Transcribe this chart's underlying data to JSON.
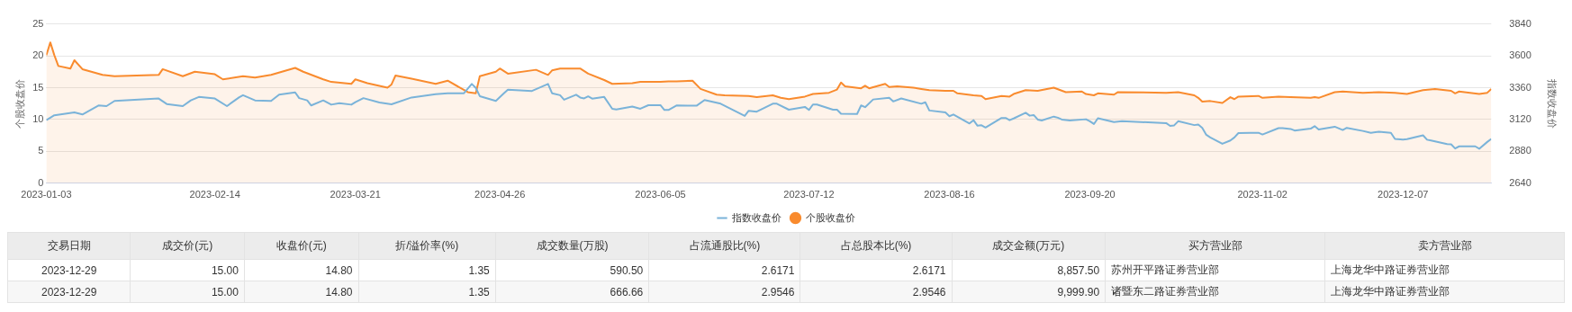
{
  "chart_data": [
    {
      "type": "line",
      "ylabel": "个股收盘价",
      "y2label": "指数收盘价",
      "xlim": [
        "2023-01-03",
        "2023-12-29"
      ],
      "xticks": [
        "2023-01-03",
        "2023-02-14",
        "2023-03-21",
        "2023-04-26",
        "2023-06-05",
        "2023-07-12",
        "2023-08-16",
        "2023-09-20",
        "2023-11-02",
        "2023-12-07"
      ],
      "ylim": [
        0,
        25
      ],
      "yticks": [
        0,
        5,
        10,
        15,
        20,
        25
      ],
      "y2lim": [
        2640,
        3840
      ],
      "y2ticks": [
        2640,
        2880,
        3120,
        3360,
        3600,
        3840
      ],
      "grid": "y",
      "legend": "bottom",
      "marker": "none",
      "series": [
        {
          "name": "指数收盘价",
          "type": "line",
          "axis": "y2",
          "color": "#7ab3d9",
          "x": [
            "2023-01-03",
            "2023-01-05",
            "2023-01-10",
            "2023-01-12",
            "2023-01-16",
            "2023-01-18",
            "2023-01-20",
            "2023-01-31",
            "2023-02-02",
            "2023-02-06",
            "2023-02-08",
            "2023-02-10",
            "2023-02-14",
            "2023-02-17",
            "2023-02-20",
            "2023-02-21",
            "2023-02-24",
            "2023-02-28",
            "2023-03-02",
            "2023-03-06",
            "2023-03-07",
            "2023-03-09",
            "2023-03-10",
            "2023-03-13",
            "2023-03-15",
            "2023-03-17",
            "2023-03-20",
            "2023-03-21",
            "2023-03-23",
            "2023-03-27",
            "2023-03-30",
            "2023-04-04",
            "2023-04-10",
            "2023-04-13",
            "2023-04-17",
            "2023-04-19",
            "2023-04-20",
            "2023-04-21",
            "2023-04-25",
            "2023-04-27",
            "2023-04-28",
            "2023-05-04",
            "2023-05-08",
            "2023-05-09",
            "2023-05-11",
            "2023-05-12",
            "2023-05-15",
            "2023-05-16",
            "2023-05-17",
            "2023-05-18",
            "2023-05-19",
            "2023-05-22",
            "2023-05-24",
            "2023-05-25",
            "2023-05-29",
            "2023-05-31",
            "2023-06-02",
            "2023-06-05",
            "2023-06-06",
            "2023-06-07",
            "2023-06-09",
            "2023-06-14",
            "2023-06-16",
            "2023-06-20",
            "2023-06-26",
            "2023-06-27",
            "2023-06-29",
            "2023-07-03",
            "2023-07-04",
            "2023-07-07",
            "2023-07-11",
            "2023-07-12",
            "2023-07-13",
            "2023-07-14",
            "2023-07-18",
            "2023-07-19",
            "2023-07-20",
            "2023-07-24",
            "2023-07-25",
            "2023-07-26",
            "2023-07-28",
            "2023-08-01",
            "2023-08-02",
            "2023-08-04",
            "2023-08-09",
            "2023-08-10",
            "2023-08-11",
            "2023-08-15",
            "2023-08-16",
            "2023-08-17",
            "2023-08-21",
            "2023-08-22",
            "2023-08-23",
            "2023-08-24",
            "2023-08-25",
            "2023-08-29",
            "2023-08-30",
            "2023-08-31",
            "2023-09-01",
            "2023-09-04",
            "2023-09-05",
            "2023-09-06",
            "2023-09-07",
            "2023-09-08",
            "2023-09-11",
            "2023-09-12",
            "2023-09-13",
            "2023-09-15",
            "2023-09-19",
            "2023-09-20",
            "2023-09-21",
            "2023-09-22",
            "2023-09-26",
            "2023-09-28",
            "2023-10-09",
            "2023-10-10",
            "2023-10-11",
            "2023-10-12",
            "2023-10-16",
            "2023-10-17",
            "2023-10-18",
            "2023-10-19",
            "2023-10-20",
            "2023-10-23",
            "2023-10-25",
            "2023-10-26",
            "2023-10-27",
            "2023-10-30",
            "2023-11-01",
            "2023-11-02",
            "2023-11-06",
            "2023-11-07",
            "2023-11-09",
            "2023-11-10",
            "2023-11-14",
            "2023-11-15",
            "2023-11-16",
            "2023-11-20",
            "2023-11-22",
            "2023-11-23",
            "2023-11-27",
            "2023-11-29",
            "2023-12-01",
            "2023-12-04",
            "2023-12-05",
            "2023-12-07",
            "2023-12-08",
            "2023-12-12",
            "2023-12-13",
            "2023-12-14",
            "2023-12-18",
            "2023-12-19",
            "2023-12-20",
            "2023-12-21",
            "2023-12-25",
            "2023-12-26",
            "2023-12-28",
            "2023-12-29"
          ],
          "values": [
            3115,
            3152,
            3173,
            3158,
            3226,
            3221,
            3260,
            3278,
            3237,
            3221,
            3264,
            3290,
            3278,
            3221,
            3286,
            3303,
            3264,
            3260,
            3307,
            3324,
            3281,
            3264,
            3226,
            3264,
            3232,
            3243,
            3232,
            3251,
            3281,
            3248,
            3235,
            3286,
            3311,
            3317,
            3317,
            3388,
            3358,
            3296,
            3260,
            3317,
            3345,
            3335,
            3388,
            3318,
            3303,
            3269,
            3307,
            3286,
            3279,
            3294,
            3277,
            3290,
            3201,
            3196,
            3218,
            3201,
            3228,
            3228,
            3192,
            3192,
            3226,
            3224,
            3267,
            3239,
            3147,
            3186,
            3179,
            3239,
            3239,
            3194,
            3215,
            3192,
            3233,
            3233,
            3194,
            3194,
            3164,
            3162,
            3226,
            3213,
            3271,
            3284,
            3256,
            3279,
            3239,
            3250,
            3188,
            3173,
            3145,
            3158,
            3090,
            3115,
            3073,
            3077,
            3060,
            3132,
            3132,
            3115,
            3128,
            3171,
            3149,
            3154,
            3120,
            3113,
            3142,
            3134,
            3120,
            3113,
            3122,
            3107,
            3086,
            3130,
            3101,
            3107,
            3093,
            3072,
            3076,
            3107,
            3078,
            3082,
            3057,
            3005,
            2985,
            2937,
            2962,
            2985,
            3018,
            3020,
            3020,
            3007,
            3055,
            3055,
            3049,
            3037,
            3051,
            3070,
            3045,
            3066,
            3041,
            3057,
            3034,
            3020,
            3028,
            3020,
            2974,
            2968,
            2972,
            3001,
            2968,
            2962,
            2935,
            2933,
            2902,
            2918,
            2918,
            2900,
            2951,
            2974
          ]
        },
        {
          "name": "个股收盘价",
          "type": "area",
          "axis": "y",
          "color": "#f98b2e",
          "x": [
            "2023-01-03",
            "2023-01-04",
            "2023-01-05",
            "2023-01-06",
            "2023-01-09",
            "2023-01-10",
            "2023-01-12",
            "2023-01-17",
            "2023-01-20",
            "2023-01-31",
            "2023-02-01",
            "2023-02-06",
            "2023-02-09",
            "2023-02-14",
            "2023-02-16",
            "2023-02-21",
            "2023-02-24",
            "2023-02-28",
            "2023-03-06",
            "2023-03-08",
            "2023-03-13",
            "2023-03-15",
            "2023-03-20",
            "2023-03-21",
            "2023-03-24",
            "2023-03-29",
            "2023-03-30",
            "2023-03-31",
            "2023-04-04",
            "2023-04-10",
            "2023-04-13",
            "2023-04-18",
            "2023-04-20",
            "2023-04-21",
            "2023-04-25",
            "2023-04-26",
            "2023-04-28",
            "2023-05-05",
            "2023-05-08",
            "2023-05-09",
            "2023-05-11",
            "2023-05-16",
            "2023-05-18",
            "2023-05-22",
            "2023-05-24",
            "2023-05-29",
            "2023-05-31",
            "2023-06-05",
            "2023-06-07",
            "2023-06-09",
            "2023-06-13",
            "2023-06-15",
            "2023-06-19",
            "2023-06-21",
            "2023-06-27",
            "2023-06-29",
            "2023-07-03",
            "2023-07-05",
            "2023-07-07",
            "2023-07-11",
            "2023-07-13",
            "2023-07-17",
            "2023-07-19",
            "2023-07-20",
            "2023-07-21",
            "2023-07-25",
            "2023-07-26",
            "2023-07-27",
            "2023-07-31",
            "2023-08-01",
            "2023-08-03",
            "2023-08-07",
            "2023-08-09",
            "2023-08-11",
            "2023-08-15",
            "2023-08-17",
            "2023-08-18",
            "2023-08-22",
            "2023-08-24",
            "2023-08-25",
            "2023-08-29",
            "2023-08-31",
            "2023-09-01",
            "2023-09-04",
            "2023-09-07",
            "2023-09-11",
            "2023-09-14",
            "2023-09-18",
            "2023-09-19",
            "2023-09-21",
            "2023-09-22",
            "2023-09-26",
            "2023-09-27",
            "2023-10-09",
            "2023-10-12",
            "2023-10-16",
            "2023-10-17",
            "2023-10-18",
            "2023-10-20",
            "2023-10-23",
            "2023-10-25",
            "2023-10-26",
            "2023-10-27",
            "2023-11-01",
            "2023-11-02",
            "2023-11-06",
            "2023-11-09",
            "2023-11-14",
            "2023-11-15",
            "2023-11-16",
            "2023-11-20",
            "2023-11-22",
            "2023-11-27",
            "2023-12-01",
            "2023-12-05",
            "2023-12-08",
            "2023-12-12",
            "2023-12-15",
            "2023-12-19",
            "2023-12-20",
            "2023-12-21",
            "2023-12-26",
            "2023-12-28",
            "2023-12-29"
          ],
          "values": [
            20.1,
            22.1,
            20.1,
            18.4,
            18.0,
            19.3,
            17.9,
            17.0,
            16.8,
            17.0,
            17.9,
            16.8,
            17.5,
            17.1,
            16.3,
            16.8,
            16.6,
            17.0,
            18.1,
            17.5,
            16.3,
            15.9,
            15.6,
            16.3,
            15.7,
            15.0,
            15.5,
            16.9,
            16.4,
            15.6,
            16.1,
            14.3,
            14.1,
            16.8,
            17.5,
            18.0,
            17.2,
            17.8,
            17.0,
            17.7,
            18.0,
            18.0,
            17.2,
            16.2,
            15.6,
            15.7,
            15.9,
            15.9,
            16.0,
            16.0,
            16.1,
            14.8,
            13.9,
            13.8,
            13.7,
            13.5,
            13.8,
            13.4,
            13.2,
            13.6,
            14.0,
            14.2,
            14.7,
            15.8,
            15.2,
            14.9,
            15.3,
            14.9,
            15.6,
            15.1,
            15.2,
            15.0,
            14.8,
            14.6,
            14.5,
            14.5,
            14.1,
            13.8,
            13.7,
            13.2,
            13.7,
            13.6,
            14.0,
            14.6,
            14.5,
            15.0,
            14.3,
            14.4,
            14.0,
            13.8,
            14.1,
            13.9,
            14.3,
            14.2,
            14.3,
            13.8,
            13.4,
            12.8,
            12.9,
            12.6,
            13.5,
            13.2,
            13.6,
            13.7,
            13.4,
            13.6,
            13.5,
            13.4,
            13.5,
            13.4,
            14.3,
            14.4,
            14.2,
            14.3,
            14.2,
            14.0,
            14.6,
            14.8,
            14.5,
            14.1,
            14.4,
            14.0,
            14.2,
            14.8
          ]
        }
      ]
    },
    {
      "type": "other",
      "categories": [
        "交易日期",
        "成交价(元)",
        "收盘价(元)",
        "折/溢价率(%)",
        "成交数量(万股)",
        "占流通股比(%)",
        "占总股本比(%)",
        "成交金额(万元)",
        "买方营业部",
        "卖方营业部"
      ],
      "cell_labels": [
        [
          "2023-12-29",
          "15.00",
          "14.80",
          "1.35",
          "590.50",
          "2.6171",
          "2.6171",
          "8,857.50",
          "苏州开平路证券营业部",
          "上海龙华中路证券营业部"
        ],
        [
          "2023-12-29",
          "15.00",
          "14.80",
          "1.35",
          "666.66",
          "2.9546",
          "2.9546",
          "9,999.90",
          "诸暨东二路证券营业部",
          "上海龙华中路证券营业部"
        ]
      ]
    }
  ]
}
